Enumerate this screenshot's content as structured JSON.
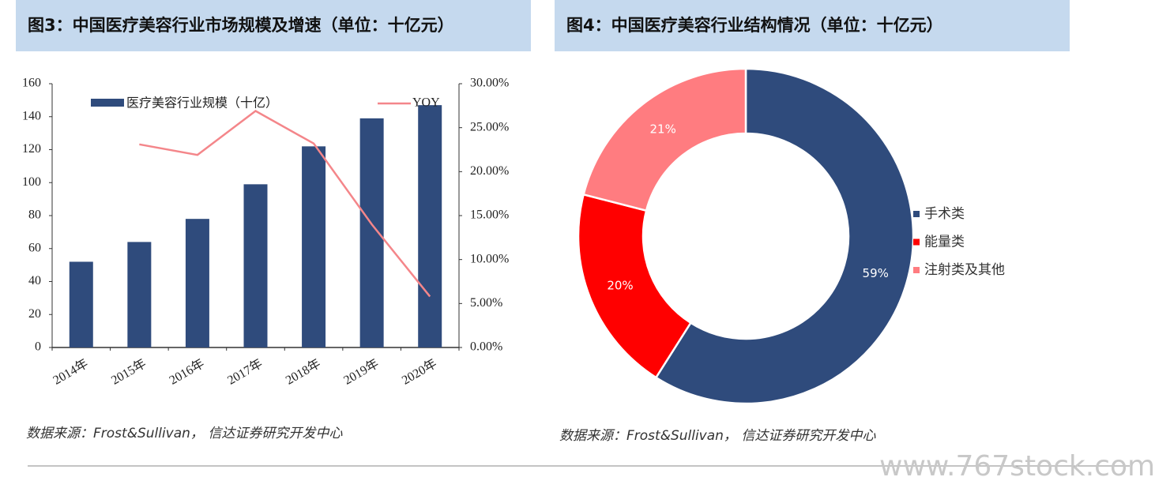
{
  "chart_data": [
    {
      "type": "combo",
      "title": "图3：中国医疗美容行业市场规模及增速（单位：十亿元）",
      "categories": [
        "2014年",
        "2015年",
        "2016年",
        "2017年",
        "2018年",
        "2019年",
        "2020年"
      ],
      "series": [
        {
          "name": "医疗美容行业规模（十亿）",
          "type": "bar",
          "color": "#2f4b7c",
          "values": [
            52,
            64,
            78,
            99,
            122,
            139,
            147
          ]
        },
        {
          "name": "YOY",
          "type": "line",
          "axis": "y2",
          "color": "#f4868a",
          "values": [
            null,
            23.1,
            21.9,
            26.9,
            23.2,
            14.0,
            5.8
          ]
        }
      ],
      "ylim": [
        0,
        160
      ],
      "yticks": [
        0,
        20,
        40,
        60,
        80,
        100,
        120,
        140,
        160
      ],
      "y2lim": [
        0,
        30
      ],
      "y2ticks": [
        {
          "value": 0,
          "label": "0.00%"
        },
        {
          "value": 5,
          "label": "5.00%"
        },
        {
          "value": 10,
          "label": "10.00%"
        },
        {
          "value": 15,
          "label": "15.00%"
        },
        {
          "value": 20,
          "label": "20.00%"
        },
        {
          "value": 25,
          "label": "25.00%"
        },
        {
          "value": 30,
          "label": "30.00%"
        }
      ],
      "source": "数据来源：Frost&Sullivan， 信达证券研究开发中心"
    },
    {
      "type": "donut",
      "title": "图4：中国医疗美容行业结构情况（单位：十亿元）",
      "categories": [
        "手术类",
        "能量类",
        "注射类及其他"
      ],
      "values": [
        59,
        20,
        21
      ],
      "value_labels": [
        "59%",
        "20%",
        "21%"
      ],
      "colors": [
        "#2f4b7c",
        "#ff0000",
        "#ff7c80"
      ],
      "source": "数据来源：Frost&Sullivan， 信达证券研究开发中心"
    }
  ],
  "watermark": "www.767stock.com"
}
